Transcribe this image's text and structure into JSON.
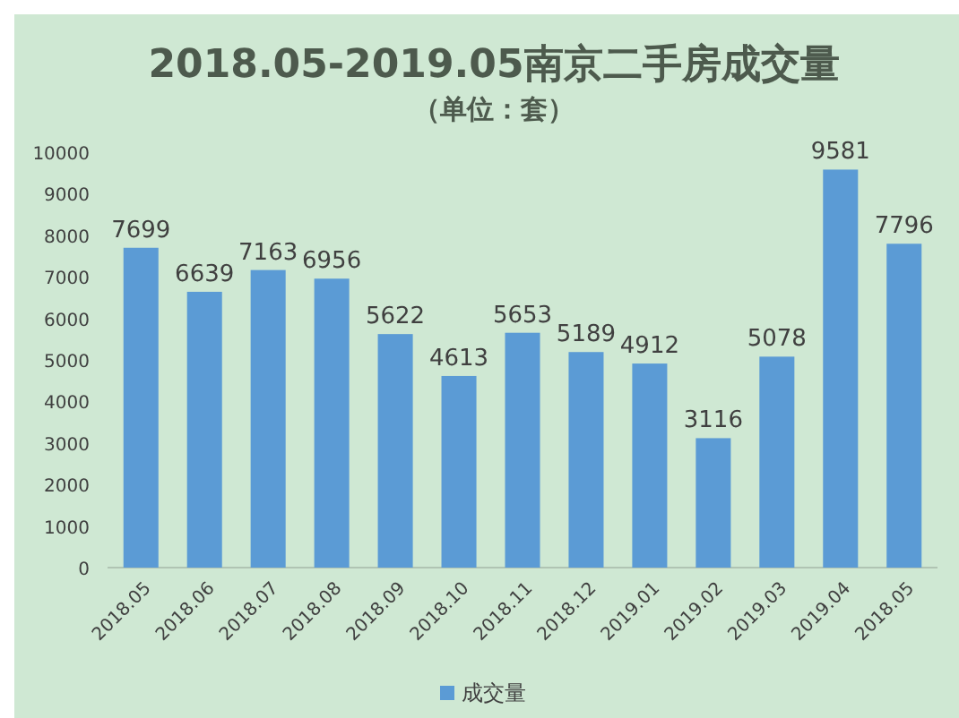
{
  "chart_data": {
    "type": "bar",
    "title": "2018.05-2019.05南京二手房成交量",
    "subtitle": "（单位：套）",
    "categories": [
      "2018.05",
      "2018.06",
      "2018.07",
      "2018.08",
      "2018.09",
      "2018.10",
      "2018.11",
      "2018.12",
      "2019.01",
      "2019.02",
      "2019.03",
      "2019.04",
      "2018.05"
    ],
    "series": [
      {
        "name": "成交量",
        "color": "#5b9bd5",
        "values": [
          7699,
          6639,
          7163,
          6956,
          5622,
          4613,
          5653,
          5189,
          4912,
          3116,
          5078,
          9581,
          7796
        ]
      }
    ],
    "data_labels": true,
    "ylim": [
      0,
      10000
    ],
    "yticks": [
      0,
      1000,
      2000,
      3000,
      4000,
      5000,
      6000,
      7000,
      8000,
      9000,
      10000
    ],
    "grid": false,
    "legend": "bottom"
  }
}
